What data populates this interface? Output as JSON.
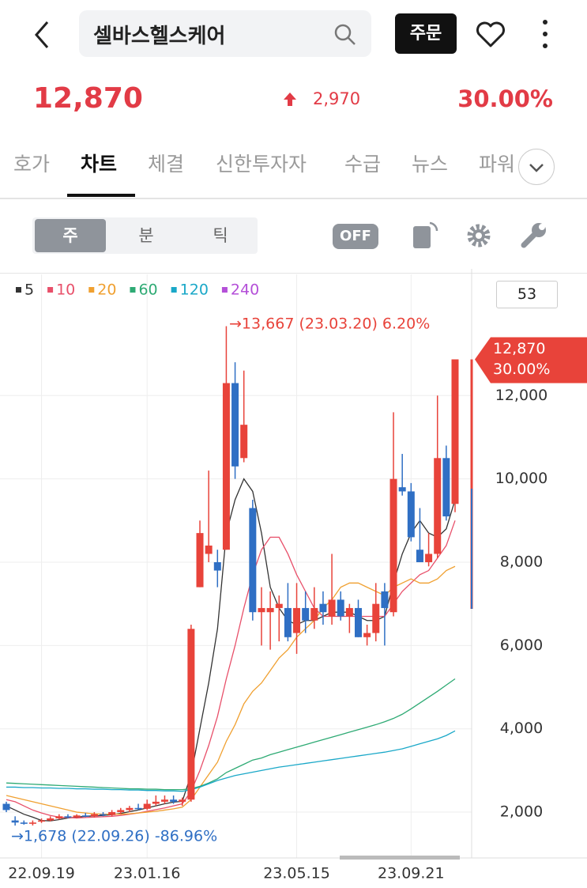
{
  "header": {
    "title": "셀바스헬스케어",
    "order": "주문"
  },
  "quote": {
    "price": "12,870",
    "change": "2,970",
    "rate": "30.00%"
  },
  "tabs": [
    "호가",
    "차트",
    "체결",
    "신한투자자",
    "수급",
    "뉴스",
    "파워"
  ],
  "toolbar": {
    "periods": [
      "주",
      "분",
      "틱"
    ],
    "toggle": "OFF"
  },
  "count_box": "53",
  "chart_data": {
    "type": "candlestick",
    "up_color": "#e8433a",
    "down_color": "#2f6fc4",
    "categories": [
      null,
      null,
      null,
      null,
      "22.09.19",
      null,
      null,
      null,
      null,
      null,
      null,
      null,
      null,
      null,
      null,
      null,
      "23.01.16",
      null,
      null,
      null,
      null,
      null,
      null,
      null,
      null,
      null,
      null,
      null,
      null,
      null,
      null,
      null,
      null,
      "23.05.15",
      null,
      null,
      null,
      null,
      null,
      null,
      null,
      null,
      null,
      null,
      null,
      null,
      "23.09.21",
      null,
      null,
      null,
      null,
      null
    ],
    "candles": [
      {
        "o": 2200,
        "h": 2250,
        "l": 2000,
        "c": 2050
      },
      {
        "o": 1800,
        "h": 1900,
        "l": 1678,
        "c": 1750
      },
      {
        "o": 1750,
        "h": 1800,
        "l": 1700,
        "c": 1720
      },
      {
        "o": 1720,
        "h": 1800,
        "l": 1680,
        "c": 1750
      },
      {
        "o": 1780,
        "h": 1850,
        "l": 1740,
        "c": 1800
      },
      {
        "o": 1800,
        "h": 1900,
        "l": 1780,
        "c": 1850
      },
      {
        "o": 1850,
        "h": 1950,
        "l": 1820,
        "c": 1900
      },
      {
        "o": 1900,
        "h": 1950,
        "l": 1850,
        "c": 1880
      },
      {
        "o": 1880,
        "h": 1950,
        "l": 1850,
        "c": 1920
      },
      {
        "o": 1920,
        "h": 1980,
        "l": 1880,
        "c": 1900
      },
      {
        "o": 1900,
        "h": 2000,
        "l": 1870,
        "c": 1950
      },
      {
        "o": 1950,
        "h": 2000,
        "l": 1900,
        "c": 1930
      },
      {
        "o": 1930,
        "h": 2050,
        "l": 1900,
        "c": 2000
      },
      {
        "o": 2000,
        "h": 2100,
        "l": 1950,
        "c": 2050
      },
      {
        "o": 2050,
        "h": 2150,
        "l": 2000,
        "c": 2100
      },
      {
        "o": 2100,
        "h": 2200,
        "l": 2050,
        "c": 2080
      },
      {
        "o": 2080,
        "h": 2300,
        "l": 2050,
        "c": 2200
      },
      {
        "o": 2200,
        "h": 2400,
        "l": 2150,
        "c": 2250
      },
      {
        "o": 2250,
        "h": 2400,
        "l": 2200,
        "c": 2300
      },
      {
        "o": 2300,
        "h": 2400,
        "l": 2200,
        "c": 2250
      },
      {
        "o": 2250,
        "h": 2350,
        "l": 2150,
        "c": 2300
      },
      {
        "o": 2300,
        "h": 6500,
        "l": 2250,
        "c": 6400
      },
      {
        "o": 7400,
        "h": 9000,
        "l": 7400,
        "c": 8700
      },
      {
        "o": 8200,
        "h": 10200,
        "l": 8000,
        "c": 8400
      },
      {
        "o": 8000,
        "h": 8300,
        "l": 7400,
        "c": 7800
      },
      {
        "o": 8300,
        "h": 13667,
        "l": 8300,
        "c": 12300
      },
      {
        "o": 12300,
        "h": 12800,
        "l": 10000,
        "c": 10300
      },
      {
        "o": 10500,
        "h": 12600,
        "l": 10400,
        "c": 11300
      },
      {
        "o": 9300,
        "h": 9500,
        "l": 6600,
        "c": 6800
      },
      {
        "o": 6800,
        "h": 7400,
        "l": 6000,
        "c": 6900
      },
      {
        "o": 6800,
        "h": 7300,
        "l": 5900,
        "c": 6900
      },
      {
        "o": 6900,
        "h": 7200,
        "l": 6100,
        "c": 7000
      },
      {
        "o": 6900,
        "h": 7500,
        "l": 6100,
        "c": 6200
      },
      {
        "o": 6300,
        "h": 7500,
        "l": 5800,
        "c": 6900
      },
      {
        "o": 6900,
        "h": 7300,
        "l": 6300,
        "c": 6600
      },
      {
        "o": 6600,
        "h": 7400,
        "l": 6400,
        "c": 6900
      },
      {
        "o": 7000,
        "h": 7300,
        "l": 6500,
        "c": 6800
      },
      {
        "o": 6700,
        "h": 8200,
        "l": 6500,
        "c": 7100
      },
      {
        "o": 7100,
        "h": 7300,
        "l": 6600,
        "c": 6700
      },
      {
        "o": 6700,
        "h": 7000,
        "l": 6300,
        "c": 6900
      },
      {
        "o": 6900,
        "h": 7100,
        "l": 6200,
        "c": 6200
      },
      {
        "o": 6200,
        "h": 6500,
        "l": 6000,
        "c": 6300
      },
      {
        "o": 6300,
        "h": 7500,
        "l": 6100,
        "c": 7000
      },
      {
        "o": 7300,
        "h": 7500,
        "l": 6000,
        "c": 6900
      },
      {
        "o": 6800,
        "h": 11600,
        "l": 6700,
        "c": 10000
      },
      {
        "o": 9800,
        "h": 10600,
        "l": 9600,
        "c": 9700
      },
      {
        "o": 9700,
        "h": 9900,
        "l": 8500,
        "c": 8600
      },
      {
        "o": 8300,
        "h": 9300,
        "l": 8000,
        "c": 8000
      },
      {
        "o": 8000,
        "h": 8700,
        "l": 7900,
        "c": 8200
      },
      {
        "o": 8200,
        "h": 12000,
        "l": 8100,
        "c": 10500
      },
      {
        "o": 10500,
        "h": 10800,
        "l": 9000,
        "c": 9100
      },
      {
        "o": 9400,
        "h": 12870,
        "l": 9200,
        "c": 12870
      }
    ],
    "series": [
      {
        "name": "5",
        "color": "#333333",
        "values": [
          2150,
          2050,
          1950,
          1880,
          1800,
          1790,
          1820,
          1860,
          1880,
          1900,
          1910,
          1920,
          1940,
          1970,
          2010,
          2050,
          2100,
          2150,
          2200,
          2240,
          2260,
          2900,
          4000,
          5100,
          6400,
          8700,
          9500,
          10000,
          9700,
          8700,
          7400,
          6900,
          6600,
          6500,
          6600,
          6600,
          6700,
          6800,
          6800,
          6800,
          6700,
          6600,
          6600,
          6700,
          7500,
          8200,
          8700,
          9000,
          8700,
          8600,
          8800,
          9500
        ]
      },
      {
        "name": "10",
        "color": "#e8506a",
        "values": [
          2300,
          2250,
          2150,
          2050,
          1980,
          1920,
          1880,
          1870,
          1860,
          1870,
          1880,
          1890,
          1900,
          1920,
          1950,
          1980,
          2020,
          2060,
          2100,
          2150,
          2200,
          2500,
          3000,
          3600,
          4300,
          5200,
          6000,
          6900,
          7700,
          8300,
          8600,
          8600,
          8200,
          7700,
          7300,
          6900,
          6700,
          6700,
          6700,
          6700,
          6700,
          6700,
          6700,
          6700,
          7000,
          7300,
          7500,
          7700,
          7800,
          8100,
          8400,
          9000
        ]
      },
      {
        "name": "20",
        "color": "#f0a030",
        "values": [
          2400,
          2350,
          2300,
          2250,
          2200,
          2150,
          2100,
          2050,
          2000,
          1980,
          1960,
          1950,
          1950,
          1950,
          1960,
          1980,
          2000,
          2020,
          2050,
          2080,
          2120,
          2300,
          2600,
          2900,
          3200,
          3700,
          4100,
          4600,
          4900,
          5100,
          5400,
          5700,
          5900,
          6200,
          6400,
          6600,
          6900,
          7100,
          7400,
          7500,
          7500,
          7400,
          7300,
          7200,
          7400,
          7500,
          7600,
          7500,
          7500,
          7600,
          7800,
          7900
        ]
      },
      {
        "name": "60",
        "color": "#2eaa74",
        "values": [
          2700,
          2690,
          2680,
          2670,
          2660,
          2650,
          2640,
          2630,
          2620,
          2610,
          2600,
          2590,
          2580,
          2570,
          2560,
          2560,
          2550,
          2550,
          2540,
          2540,
          2540,
          2560,
          2620,
          2700,
          2800,
          2950,
          3050,
          3150,
          3250,
          3300,
          3380,
          3440,
          3500,
          3560,
          3620,
          3680,
          3740,
          3800,
          3860,
          3920,
          3980,
          4040,
          4100,
          4170,
          4250,
          4350,
          4480,
          4620,
          4760,
          4900,
          5050,
          5200
        ]
      },
      {
        "name": "120",
        "color": "#1aa8c8",
        "values": [
          2600,
          2600,
          2590,
          2590,
          2580,
          2580,
          2570,
          2570,
          2560,
          2560,
          2550,
          2550,
          2540,
          2540,
          2530,
          2530,
          2520,
          2520,
          2510,
          2510,
          2500,
          2540,
          2600,
          2680,
          2760,
          2820,
          2880,
          2920,
          2960,
          3000,
          3040,
          3080,
          3110,
          3140,
          3170,
          3200,
          3230,
          3260,
          3290,
          3320,
          3350,
          3380,
          3410,
          3440,
          3480,
          3520,
          3580,
          3640,
          3700,
          3760,
          3840,
          3950
        ]
      },
      {
        "name": "240",
        "color": "#b44fd8"
      }
    ],
    "ylim": [
      900,
      14910
    ],
    "yticks": [
      {
        "value": 2000,
        "label": "2,000"
      },
      {
        "value": 4000,
        "label": "4,000"
      },
      {
        "value": 6000,
        "label": "6,000"
      },
      {
        "value": 8000,
        "label": "8,000"
      },
      {
        "value": 10000,
        "label": "10,000"
      },
      {
        "value": 12000,
        "label": "12,000"
      }
    ],
    "current": {
      "value": 12870,
      "price_label": "12,870",
      "rate_label": "30.00%"
    },
    "high_annotation": "→13,667 (23.03.20) 6.20%",
    "low_annotation": "→1,678 (22.09.26) -86.96%"
  }
}
